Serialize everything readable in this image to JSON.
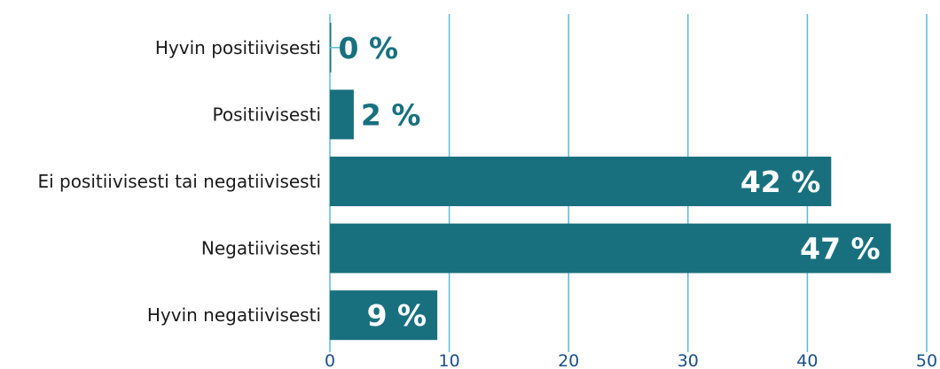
{
  "chart_data": {
    "type": "bar",
    "orientation": "horizontal",
    "categories": [
      "Hyvin positiivisesti",
      "Positiivisesti",
      "Ei positiivisesti tai negatiivisesti",
      "Negatiivisesti",
      "Hyvin negatiivisesti"
    ],
    "values": [
      0,
      2,
      42,
      47,
      9
    ],
    "data_labels": [
      "0 %",
      "2 %",
      "42 %",
      "47 %",
      "9 %"
    ],
    "xlim": [
      0,
      50
    ],
    "x_ticks": [
      0,
      10,
      20,
      30,
      40,
      50
    ],
    "x_tick_labels": [
      "0",
      "10",
      "20",
      "30",
      "40",
      "50"
    ],
    "grid": "vertical",
    "legend": "none",
    "colors": {
      "bar": "#18707f",
      "grid": "#5bbcd8",
      "tick_label": "#1a4f8a",
      "category_label": "#1a1a1a",
      "label_inside": "#ffffff",
      "label_outside": "#18707f"
    }
  }
}
